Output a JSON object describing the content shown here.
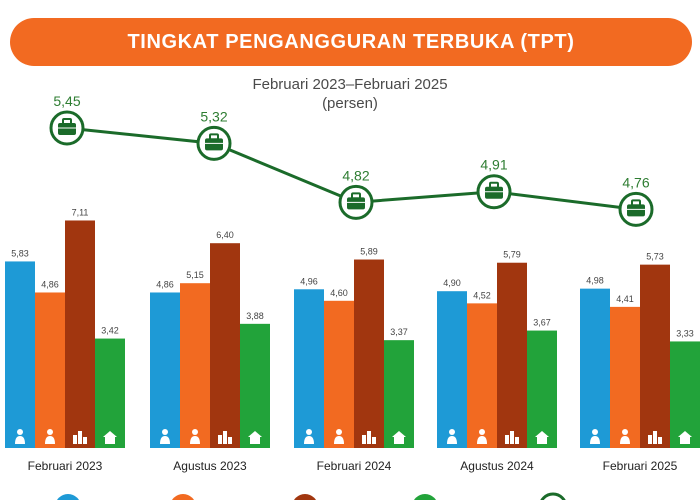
{
  "header": {
    "title": "TINGKAT PENGANGGURAN TERBUKA (TPT)",
    "subtitle_line1": "Februari 2023–Februari 2025",
    "subtitle_line2": "(persen)"
  },
  "chart_data": {
    "type": "bar",
    "categories": [
      "Februari 2023",
      "Agustus 2023",
      "Februari 2024",
      "Agustus 2024",
      "Februari 2025"
    ],
    "series": [
      {
        "values": [
          5.83,
          4.86,
          4.96,
          4.9,
          4.98
        ],
        "color": "#1e9ad6",
        "icon": "person-icon"
      },
      {
        "values": [
          4.86,
          5.15,
          4.6,
          4.52,
          4.41
        ],
        "color": "#f26a21",
        "icon": "person-icon"
      },
      {
        "values": [
          7.11,
          6.4,
          5.89,
          5.79,
          5.73
        ],
        "color": "#a1360f",
        "icon": "city-buildings-icon"
      },
      {
        "values": [
          3.42,
          3.88,
          3.37,
          3.67,
          3.33
        ],
        "color": "#22a33a",
        "icon": "village-house-icon"
      }
    ],
    "line": {
      "values": [
        5.45,
        5.32,
        4.82,
        4.91,
        4.76
      ],
      "color": "#1b6b2a",
      "marker_icon": "briefcase-icon"
    }
  }
}
